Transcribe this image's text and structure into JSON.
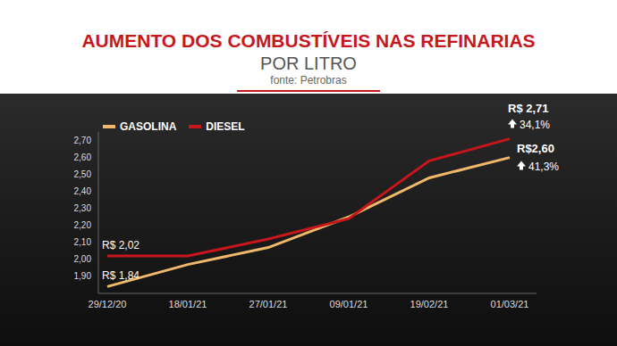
{
  "chart_data": {
    "type": "line",
    "title": "AUMENTO DOS COMBUSTÍVEIS NAS REFINARIAS",
    "subtitle": "POR LITRO",
    "source": "fonte: Petrobras",
    "categories": [
      "29/12/20",
      "18/01/21",
      "27/01/21",
      "09/01/21",
      "19/02/21",
      "01/03/21"
    ],
    "series": [
      {
        "name": "GASOLINA",
        "color": "#f0b86a",
        "values": [
          1.84,
          1.97,
          2.07,
          2.25,
          2.48,
          2.6
        ],
        "start_label": "R$ 1,84",
        "end_label": "R$2,60",
        "change_label": "41,3%"
      },
      {
        "name": "DIESEL",
        "color": "#c8161d",
        "values": [
          2.02,
          2.02,
          2.12,
          2.24,
          2.58,
          2.71
        ],
        "start_label": "R$ 2,02",
        "end_label": "R$ 2,71",
        "change_label": "34,1%"
      }
    ],
    "ylim": [
      1.8,
      2.75
    ],
    "yticks": [
      {
        "value": 1.9,
        "label": "1,90"
      },
      {
        "value": 2.0,
        "label": "2,00"
      },
      {
        "value": 2.1,
        "label": "2,10"
      },
      {
        "value": 2.2,
        "label": "2,20"
      },
      {
        "value": 2.3,
        "label": "2,30"
      },
      {
        "value": 2.4,
        "label": "2,40"
      },
      {
        "value": 2.5,
        "label": "2,50"
      },
      {
        "value": 2.6,
        "label": "2,60"
      },
      {
        "value": 2.7,
        "label": "2,70"
      }
    ],
    "grid": false,
    "legend": "upper left"
  }
}
